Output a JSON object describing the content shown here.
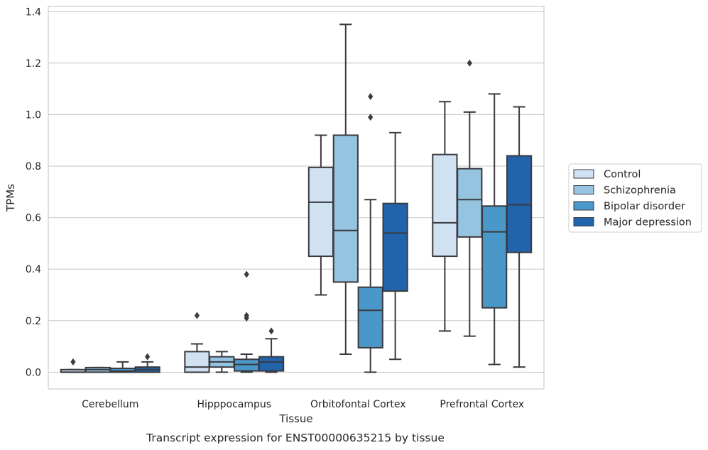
{
  "chart_data": {
    "type": "box",
    "xlabel": "Tissue",
    "ylabel": "TPMs",
    "ylim": [
      -0.065,
      1.42
    ],
    "yticks": [
      "0.0",
      "0.2",
      "0.4",
      "0.6",
      "0.8",
      "1.0",
      "1.2",
      "1.4"
    ],
    "ytick_values": [
      0.0,
      0.2,
      0.4,
      0.6,
      0.8,
      1.0,
      1.2,
      1.4
    ],
    "grid": true,
    "legend_position": "right",
    "categories": [
      "Cerebellum",
      "Hipppocampus",
      "Orbitofontal Cortex",
      "Prefrontal Cortex"
    ],
    "series": [
      {
        "name": "Control",
        "color": "#d0e1f2",
        "boxes": [
          {
            "whislo": 0.0,
            "q1": 0.0,
            "med": 0.0,
            "q3": 0.01,
            "whishi": 0.01,
            "fliers": [
              0.04
            ]
          },
          {
            "whislo": 0.0,
            "q1": 0.0,
            "med": 0.02,
            "q3": 0.08,
            "whishi": 0.11,
            "fliers": [
              0.22
            ]
          },
          {
            "whislo": 0.3,
            "q1": 0.45,
            "med": 0.66,
            "q3": 0.795,
            "whishi": 0.92,
            "fliers": []
          },
          {
            "whislo": 0.16,
            "q1": 0.45,
            "med": 0.58,
            "q3": 0.845,
            "whishi": 1.05,
            "fliers": []
          }
        ]
      },
      {
        "name": "Schizophrenia",
        "color": "#94c4df",
        "boxes": [
          {
            "whislo": 0.0,
            "q1": 0.0,
            "med": 0.01,
            "q3": 0.018,
            "whishi": 0.018,
            "fliers": []
          },
          {
            "whislo": 0.0,
            "q1": 0.02,
            "med": 0.04,
            "q3": 0.06,
            "whishi": 0.08,
            "fliers": []
          },
          {
            "whislo": 0.07,
            "q1": 0.35,
            "med": 0.55,
            "q3": 0.92,
            "whishi": 1.35,
            "fliers": []
          },
          {
            "whislo": 0.14,
            "q1": 0.525,
            "med": 0.67,
            "q3": 0.79,
            "whishi": 1.01,
            "fliers": [
              1.2
            ]
          }
        ]
      },
      {
        "name": "Bipolar disorder",
        "color": "#4a98c9",
        "boxes": [
          {
            "whislo": 0.0,
            "q1": 0.0,
            "med": 0.005,
            "q3": 0.015,
            "whishi": 0.04,
            "fliers": []
          },
          {
            "whislo": 0.0,
            "q1": 0.005,
            "med": 0.03,
            "q3": 0.05,
            "whishi": 0.07,
            "fliers": [
              0.21,
              0.22,
              0.38
            ]
          },
          {
            "whislo": 0.0,
            "q1": 0.095,
            "med": 0.24,
            "q3": 0.33,
            "whishi": 0.67,
            "fliers": [
              0.99,
              1.07
            ]
          },
          {
            "whislo": 0.03,
            "q1": 0.25,
            "med": 0.545,
            "q3": 0.645,
            "whishi": 1.08,
            "fliers": []
          }
        ]
      },
      {
        "name": "Major depression",
        "color": "#2164ab",
        "boxes": [
          {
            "whislo": 0.0,
            "q1": 0.0,
            "med": 0.01,
            "q3": 0.02,
            "whishi": 0.04,
            "fliers": [
              0.06
            ]
          },
          {
            "whislo": 0.0,
            "q1": 0.005,
            "med": 0.04,
            "q3": 0.06,
            "whishi": 0.13,
            "fliers": [
              0.16
            ]
          },
          {
            "whislo": 0.05,
            "q1": 0.315,
            "med": 0.54,
            "q3": 0.655,
            "whishi": 0.93,
            "fliers": []
          },
          {
            "whislo": 0.02,
            "q1": 0.465,
            "med": 0.65,
            "q3": 0.84,
            "whishi": 1.03,
            "fliers": []
          }
        ]
      }
    ],
    "caption": "Transcript expression for ENST00000635215 by tissue"
  }
}
